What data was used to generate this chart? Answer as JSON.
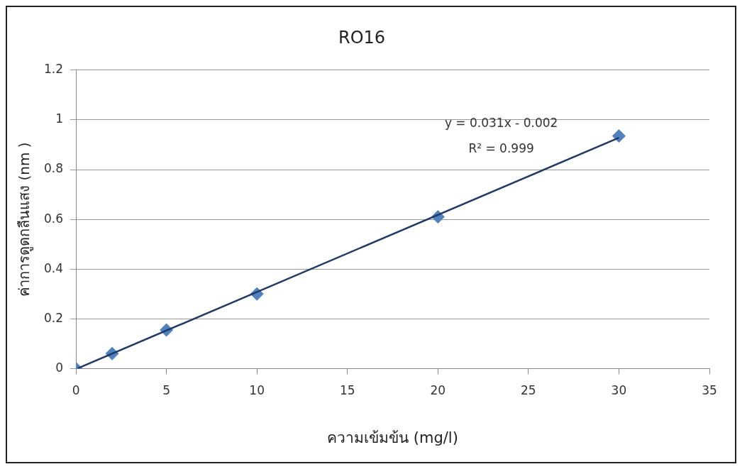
{
  "chart_data": {
    "type": "scatter",
    "title": "RO16",
    "xlabel": "ความเข้มข้น (mg/l)",
    "ylabel": "ค่าการดูดกลืนแสง (nm )",
    "xlim": [
      0,
      35
    ],
    "xticks": [
      0,
      5,
      10,
      15,
      20,
      25,
      30,
      35
    ],
    "ylim": [
      0,
      1.2
    ],
    "yticks": [
      0,
      0.2,
      0.4,
      0.6,
      0.8,
      1,
      1.2
    ],
    "grid": "y",
    "legend": false,
    "series": [
      {
        "type": "scatter",
        "marker": "diamond",
        "color": "#4f81bd",
        "x": [
          0,
          2,
          5,
          10,
          20,
          30
        ],
        "values": [
          0,
          0.06,
          0.155,
          0.3,
          0.61,
          0.935
        ]
      },
      {
        "type": "line",
        "marker": "none",
        "color": "#1f3864",
        "x": [
          0.1,
          30
        ],
        "values": [
          0.001,
          0.928
        ]
      }
    ],
    "annotations": [
      "y = 0.031x - 0.002",
      "R² = 0.999"
    ]
  }
}
